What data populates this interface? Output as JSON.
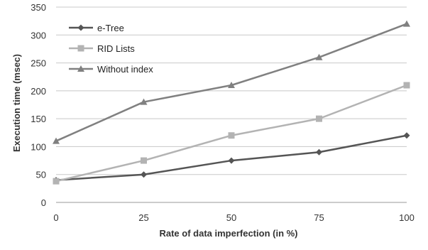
{
  "chart_data": {
    "type": "line",
    "title": "",
    "xlabel": "Rate of data imperfection (in %)",
    "ylabel": "Execution time (msec)",
    "x": [
      0,
      25,
      50,
      75,
      100
    ],
    "ylim": [
      0,
      350
    ],
    "yticks": [
      0,
      50,
      100,
      150,
      200,
      250,
      300,
      350
    ],
    "grid": true,
    "legend_position": "top-left",
    "series": [
      {
        "name": "e-Tree",
        "marker": "diamond",
        "color": "#555555",
        "values": [
          40,
          50,
          75,
          90,
          120
        ]
      },
      {
        "name": "RID Lists",
        "marker": "square",
        "color": "#b3b3b3",
        "values": [
          38,
          75,
          120,
          150,
          210
        ]
      },
      {
        "name": "Without index",
        "marker": "triangle",
        "color": "#808080",
        "values": [
          110,
          180,
          210,
          260,
          320
        ]
      }
    ]
  }
}
